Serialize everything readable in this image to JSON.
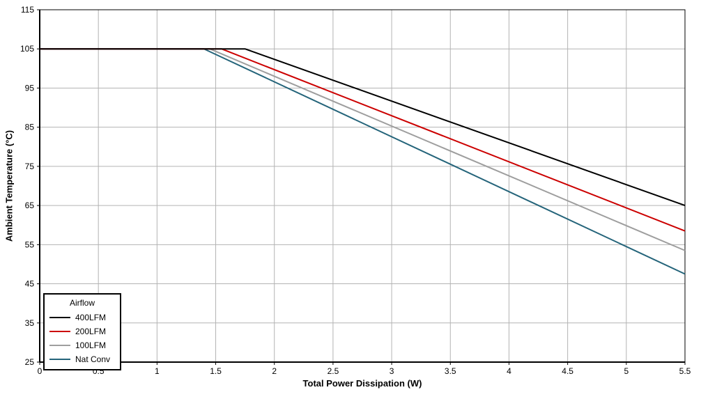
{
  "chart_data": {
    "type": "line",
    "title": "",
    "xlabel": "Total Power Dissipation (W)",
    "ylabel": "Ambient Temperature (°C)",
    "xlim": [
      0,
      5.5
    ],
    "ylim": [
      25,
      115
    ],
    "xticks": [
      0,
      0.5,
      1,
      1.5,
      2,
      2.5,
      3,
      3.5,
      4,
      4.5,
      5,
      5.5
    ],
    "yticks": [
      25,
      35,
      45,
      55,
      65,
      75,
      85,
      95,
      105,
      115
    ],
    "grid": true,
    "legend": {
      "title": "Airflow",
      "position": "bottom-left"
    },
    "series": [
      {
        "name": "400LFM",
        "color": "#000000",
        "points": [
          [
            0,
            105
          ],
          [
            1.75,
            105
          ],
          [
            5.5,
            65
          ]
        ]
      },
      {
        "name": "200LFM",
        "color": "#cc0000",
        "points": [
          [
            0,
            105
          ],
          [
            1.55,
            105
          ],
          [
            5.5,
            58.5
          ]
        ]
      },
      {
        "name": "100LFM",
        "color": "#9e9e9e",
        "points": [
          [
            0,
            105
          ],
          [
            1.45,
            105
          ],
          [
            5.5,
            53.5
          ]
        ]
      },
      {
        "name": "Nat Conv",
        "color": "#24647a",
        "points": [
          [
            0,
            105
          ],
          [
            1.4,
            105
          ],
          [
            5.5,
            47.5
          ]
        ]
      }
    ]
  },
  "styles": {
    "grid_color": "#b3b3b3",
    "axis_color": "#000000",
    "background": "#ffffff",
    "text_color": "#000000"
  }
}
